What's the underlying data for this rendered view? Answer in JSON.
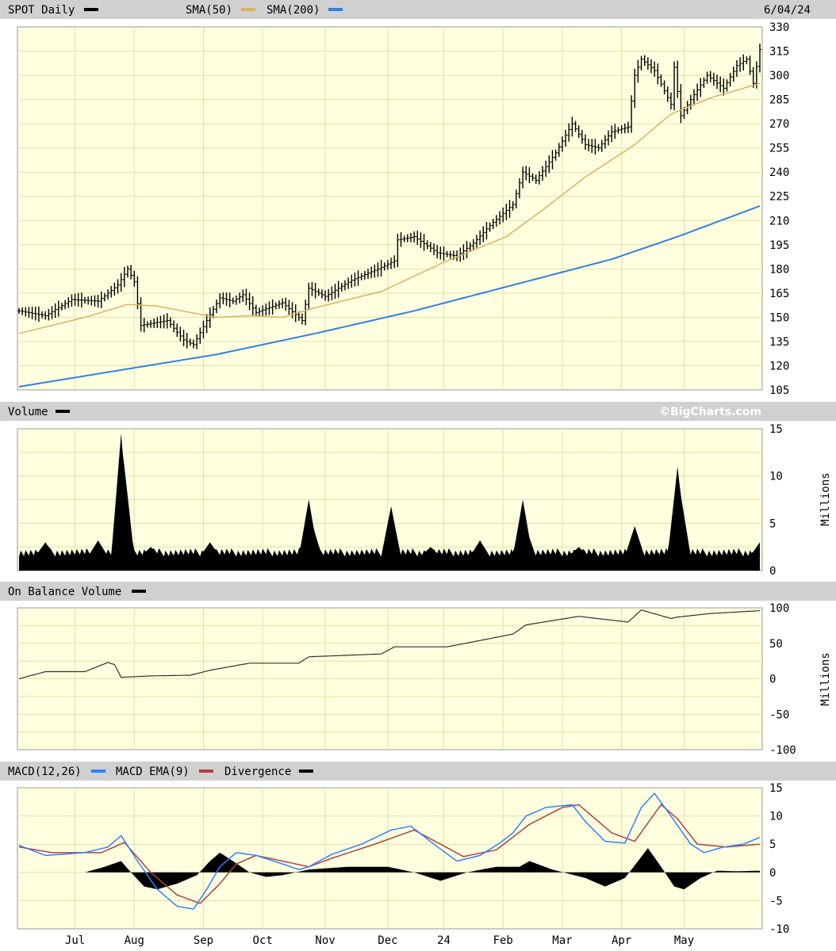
{
  "header": {
    "symbol_label": "SPOT Daily",
    "sma50_label": "SMA(50)",
    "sma200_label": "SMA(200)",
    "date_label": "6/04/24",
    "volume_label": "Volume",
    "credit": "©BigCharts.com",
    "obv_label": "On Balance Volume",
    "macd_label": "MACD(12,26)",
    "macd_ema_label": "MACD EMA(9)",
    "divergence_label": "Divergence",
    "millions_label": "Millions",
    "millions_label_obv": "Millions"
  },
  "colors": {
    "panel_bg": "#ffffe0",
    "grid": "#e0e0a8",
    "header_bar": "#d0d0d0",
    "price": "#000000",
    "sma50": "#e0b060",
    "sma200": "#3080e0",
    "macd": "#3080ff",
    "macd_ema": "#b04040",
    "divergence": "#000000"
  },
  "chart_data": [
    {
      "type": "bar",
      "id": "price",
      "ohlc_style": true,
      "series_labels": [
        "SPOT Daily",
        "SMA(50)",
        "SMA(200)"
      ],
      "x_ticks": [
        "Jul",
        "Aug",
        "Sep",
        "Oct",
        "Nov",
        "Dec",
        "24",
        "Feb",
        "Mar",
        "Apr",
        "May"
      ],
      "y_ticks": [
        330,
        315,
        300,
        285,
        270,
        255,
        240,
        225,
        210,
        195,
        180,
        165,
        150,
        135,
        120,
        105
      ],
      "ylim": [
        105,
        330
      ],
      "price_anchors": [
        {
          "t": 0,
          "v": 154
        },
        {
          "t": 8,
          "v": 151
        },
        {
          "t": 16,
          "v": 161
        },
        {
          "t": 24,
          "v": 160
        },
        {
          "t": 30,
          "v": 170
        },
        {
          "t": 33,
          "v": 180
        },
        {
          "t": 35,
          "v": 172
        },
        {
          "t": 37,
          "v": 145
        },
        {
          "t": 45,
          "v": 148
        },
        {
          "t": 50,
          "v": 136
        },
        {
          "t": 53,
          "v": 133
        },
        {
          "t": 57,
          "v": 148
        },
        {
          "t": 61,
          "v": 162
        },
        {
          "t": 65,
          "v": 160
        },
        {
          "t": 68,
          "v": 164
        },
        {
          "t": 72,
          "v": 153
        },
        {
          "t": 80,
          "v": 159
        },
        {
          "t": 86,
          "v": 148
        },
        {
          "t": 88,
          "v": 168
        },
        {
          "t": 93,
          "v": 163
        },
        {
          "t": 101,
          "v": 173
        },
        {
          "t": 109,
          "v": 180
        },
        {
          "t": 114,
          "v": 185
        },
        {
          "t": 115,
          "v": 198
        },
        {
          "t": 120,
          "v": 200
        },
        {
          "t": 127,
          "v": 190
        },
        {
          "t": 133,
          "v": 188
        },
        {
          "t": 138,
          "v": 196
        },
        {
          "t": 143,
          "v": 207
        },
        {
          "t": 150,
          "v": 220
        },
        {
          "t": 153,
          "v": 240
        },
        {
          "t": 157,
          "v": 235
        },
        {
          "t": 163,
          "v": 252
        },
        {
          "t": 168,
          "v": 270
        },
        {
          "t": 172,
          "v": 257
        },
        {
          "t": 176,
          "v": 255
        },
        {
          "t": 180,
          "v": 265
        },
        {
          "t": 185,
          "v": 268
        },
        {
          "t": 187,
          "v": 300
        },
        {
          "t": 189,
          "v": 310
        },
        {
          "t": 193,
          "v": 303
        },
        {
          "t": 198,
          "v": 282
        },
        {
          "t": 199,
          "v": 305
        },
        {
          "t": 201,
          "v": 275
        },
        {
          "t": 204,
          "v": 285
        },
        {
          "t": 209,
          "v": 300
        },
        {
          "t": 214,
          "v": 292
        },
        {
          "t": 218,
          "v": 306
        },
        {
          "t": 221,
          "v": 310
        },
        {
          "t": 223,
          "v": 295
        },
        {
          "t": 225,
          "v": 316
        }
      ],
      "sma50_anchors": [
        {
          "t": 0,
          "v": 140
        },
        {
          "t": 20,
          "v": 150
        },
        {
          "t": 33,
          "v": 158
        },
        {
          "t": 42,
          "v": 157
        },
        {
          "t": 52,
          "v": 153
        },
        {
          "t": 60,
          "v": 150
        },
        {
          "t": 70,
          "v": 151
        },
        {
          "t": 80,
          "v": 150
        },
        {
          "t": 90,
          "v": 156
        },
        {
          "t": 110,
          "v": 166
        },
        {
          "t": 130,
          "v": 185
        },
        {
          "t": 148,
          "v": 200
        },
        {
          "t": 160,
          "v": 218
        },
        {
          "t": 172,
          "v": 237
        },
        {
          "t": 187,
          "v": 257
        },
        {
          "t": 198,
          "v": 276
        },
        {
          "t": 210,
          "v": 286
        },
        {
          "t": 225,
          "v": 295
        }
      ],
      "sma200_anchors": [
        {
          "t": 0,
          "v": 107
        },
        {
          "t": 30,
          "v": 117
        },
        {
          "t": 60,
          "v": 127
        },
        {
          "t": 90,
          "v": 140
        },
        {
          "t": 120,
          "v": 154
        },
        {
          "t": 150,
          "v": 170
        },
        {
          "t": 180,
          "v": 186
        },
        {
          "t": 200,
          "v": 200
        },
        {
          "t": 225,
          "v": 219
        }
      ]
    },
    {
      "type": "area",
      "id": "volume",
      "y_ticks": [
        15,
        10,
        5,
        0
      ],
      "ylim": [
        0,
        15
      ],
      "unit": "Millions",
      "base_level": 1.5,
      "spikes": [
        {
          "t": 8,
          "v": 3.0
        },
        {
          "t": 24,
          "v": 3.2
        },
        {
          "t": 31,
          "v": 14.5
        },
        {
          "t": 32,
          "v": 11.0
        },
        {
          "t": 40,
          "v": 2.5
        },
        {
          "t": 58,
          "v": 3.0
        },
        {
          "t": 88,
          "v": 7.5
        },
        {
          "t": 89,
          "v": 5.0
        },
        {
          "t": 113,
          "v": 6.8
        },
        {
          "t": 125,
          "v": 2.5
        },
        {
          "t": 140,
          "v": 3.2
        },
        {
          "t": 153,
          "v": 7.5
        },
        {
          "t": 154,
          "v": 4.5
        },
        {
          "t": 170,
          "v": 2.5
        },
        {
          "t": 187,
          "v": 4.7
        },
        {
          "t": 200,
          "v": 11.0
        },
        {
          "t": 201,
          "v": 8.0
        },
        {
          "t": 225,
          "v": 3.0
        }
      ]
    },
    {
      "type": "line",
      "id": "obv",
      "y_ticks": [
        100,
        50,
        0,
        -50,
        -100
      ],
      "ylim": [
        -100,
        100
      ],
      "unit": "Millions",
      "anchors": [
        {
          "t": 0,
          "v": 0
        },
        {
          "t": 8,
          "v": 10
        },
        {
          "t": 20,
          "v": 10
        },
        {
          "t": 27,
          "v": 23
        },
        {
          "t": 29,
          "v": 20
        },
        {
          "t": 31,
          "v": 2
        },
        {
          "t": 40,
          "v": 4
        },
        {
          "t": 52,
          "v": 5
        },
        {
          "t": 58,
          "v": 12
        },
        {
          "t": 70,
          "v": 22
        },
        {
          "t": 85,
          "v": 22
        },
        {
          "t": 88,
          "v": 31
        },
        {
          "t": 110,
          "v": 35
        },
        {
          "t": 114,
          "v": 45
        },
        {
          "t": 130,
          "v": 45
        },
        {
          "t": 150,
          "v": 63
        },
        {
          "t": 154,
          "v": 76
        },
        {
          "t": 170,
          "v": 88
        },
        {
          "t": 185,
          "v": 80
        },
        {
          "t": 189,
          "v": 97
        },
        {
          "t": 198,
          "v": 85
        },
        {
          "t": 200,
          "v": 87
        },
        {
          "t": 210,
          "v": 92
        },
        {
          "t": 225,
          "v": 96
        }
      ]
    },
    {
      "type": "line",
      "id": "macd",
      "series_labels": [
        "MACD(12,26)",
        "MACD EMA(9)",
        "Divergence"
      ],
      "y_ticks": [
        15,
        10,
        5,
        0,
        -5,
        -10
      ],
      "ylim": [
        -10,
        15
      ],
      "macd_anchors": [
        {
          "t": 0,
          "v": 4.8
        },
        {
          "t": 8,
          "v": 3
        },
        {
          "t": 20,
          "v": 3.5
        },
        {
          "t": 27,
          "v": 4.5
        },
        {
          "t": 31,
          "v": 6.5
        },
        {
          "t": 36,
          "v": 2
        },
        {
          "t": 42,
          "v": -3
        },
        {
          "t": 48,
          "v": -6
        },
        {
          "t": 53,
          "v": -6.5
        },
        {
          "t": 57,
          "v": -3
        },
        {
          "t": 61,
          "v": 1
        },
        {
          "t": 66,
          "v": 3.5
        },
        {
          "t": 72,
          "v": 3
        },
        {
          "t": 80,
          "v": 1.5
        },
        {
          "t": 85,
          "v": 0.5
        },
        {
          "t": 88,
          "v": 1
        },
        {
          "t": 95,
          "v": 3.2
        },
        {
          "t": 104,
          "v": 5
        },
        {
          "t": 113,
          "v": 7.5
        },
        {
          "t": 119,
          "v": 8.2
        },
        {
          "t": 126,
          "v": 5
        },
        {
          "t": 133,
          "v": 2
        },
        {
          "t": 140,
          "v": 3
        },
        {
          "t": 146,
          "v": 5.2
        },
        {
          "t": 150,
          "v": 7
        },
        {
          "t": 154,
          "v": 10
        },
        {
          "t": 160,
          "v": 11.5
        },
        {
          "t": 168,
          "v": 12
        },
        {
          "t": 172,
          "v": 9
        },
        {
          "t": 178,
          "v": 5.5
        },
        {
          "t": 184,
          "v": 5.2
        },
        {
          "t": 189,
          "v": 11.5
        },
        {
          "t": 193,
          "v": 14
        },
        {
          "t": 198,
          "v": 10
        },
        {
          "t": 204,
          "v": 5
        },
        {
          "t": 208,
          "v": 3.5
        },
        {
          "t": 214,
          "v": 4.5
        },
        {
          "t": 220,
          "v": 5
        },
        {
          "t": 225,
          "v": 6.2
        }
      ],
      "ema_anchors": [
        {
          "t": 0,
          "v": 4.5
        },
        {
          "t": 10,
          "v": 3.5
        },
        {
          "t": 25,
          "v": 3.5
        },
        {
          "t": 32,
          "v": 5.3
        },
        {
          "t": 40,
          "v": 0
        },
        {
          "t": 48,
          "v": -4
        },
        {
          "t": 55,
          "v": -5.5
        },
        {
          "t": 61,
          "v": -2
        },
        {
          "t": 66,
          "v": 1.5
        },
        {
          "t": 72,
          "v": 3
        },
        {
          "t": 80,
          "v": 2
        },
        {
          "t": 88,
          "v": 1
        },
        {
          "t": 95,
          "v": 2.5
        },
        {
          "t": 108,
          "v": 5
        },
        {
          "t": 120,
          "v": 7.5
        },
        {
          "t": 128,
          "v": 5
        },
        {
          "t": 135,
          "v": 2.8
        },
        {
          "t": 145,
          "v": 4
        },
        {
          "t": 155,
          "v": 8.5
        },
        {
          "t": 165,
          "v": 11.5
        },
        {
          "t": 170,
          "v": 12
        },
        {
          "t": 180,
          "v": 7
        },
        {
          "t": 187,
          "v": 5.5
        },
        {
          "t": 195,
          "v": 12
        },
        {
          "t": 200,
          "v": 9.5
        },
        {
          "t": 206,
          "v": 5
        },
        {
          "t": 215,
          "v": 4.5
        },
        {
          "t": 225,
          "v": 5
        }
      ],
      "divergence_anchors": [
        {
          "t": 0,
          "v": 0
        },
        {
          "t": 20,
          "v": 0
        },
        {
          "t": 26,
          "v": 1
        },
        {
          "t": 31,
          "v": 2
        },
        {
          "t": 34,
          "v": 0
        },
        {
          "t": 38,
          "v": -2.5
        },
        {
          "t": 42,
          "v": -3
        },
        {
          "t": 48,
          "v": -2
        },
        {
          "t": 54,
          "v": -0.5
        },
        {
          "t": 58,
          "v": 2
        },
        {
          "t": 61,
          "v": 3.5
        },
        {
          "t": 65,
          "v": 2
        },
        {
          "t": 70,
          "v": 0
        },
        {
          "t": 75,
          "v": -0.8
        },
        {
          "t": 80,
          "v": -0.5
        },
        {
          "t": 88,
          "v": 0.5
        },
        {
          "t": 100,
          "v": 1
        },
        {
          "t": 112,
          "v": 1
        },
        {
          "t": 120,
          "v": 0
        },
        {
          "t": 128,
          "v": -1.5
        },
        {
          "t": 136,
          "v": 0
        },
        {
          "t": 145,
          "v": 1
        },
        {
          "t": 152,
          "v": 1
        },
        {
          "t": 155,
          "v": 2
        },
        {
          "t": 162,
          "v": 0.5
        },
        {
          "t": 172,
          "v": -1
        },
        {
          "t": 178,
          "v": -2.5
        },
        {
          "t": 184,
          "v": -1
        },
        {
          "t": 188,
          "v": 2
        },
        {
          "t": 191,
          "v": 4.3
        },
        {
          "t": 195,
          "v": 1
        },
        {
          "t": 199,
          "v": -2.5
        },
        {
          "t": 202,
          "v": -3
        },
        {
          "t": 207,
          "v": -1
        },
        {
          "t": 212,
          "v": 0.3
        },
        {
          "t": 218,
          "v": 0.2
        },
        {
          "t": 225,
          "v": 0.3
        }
      ]
    }
  ]
}
